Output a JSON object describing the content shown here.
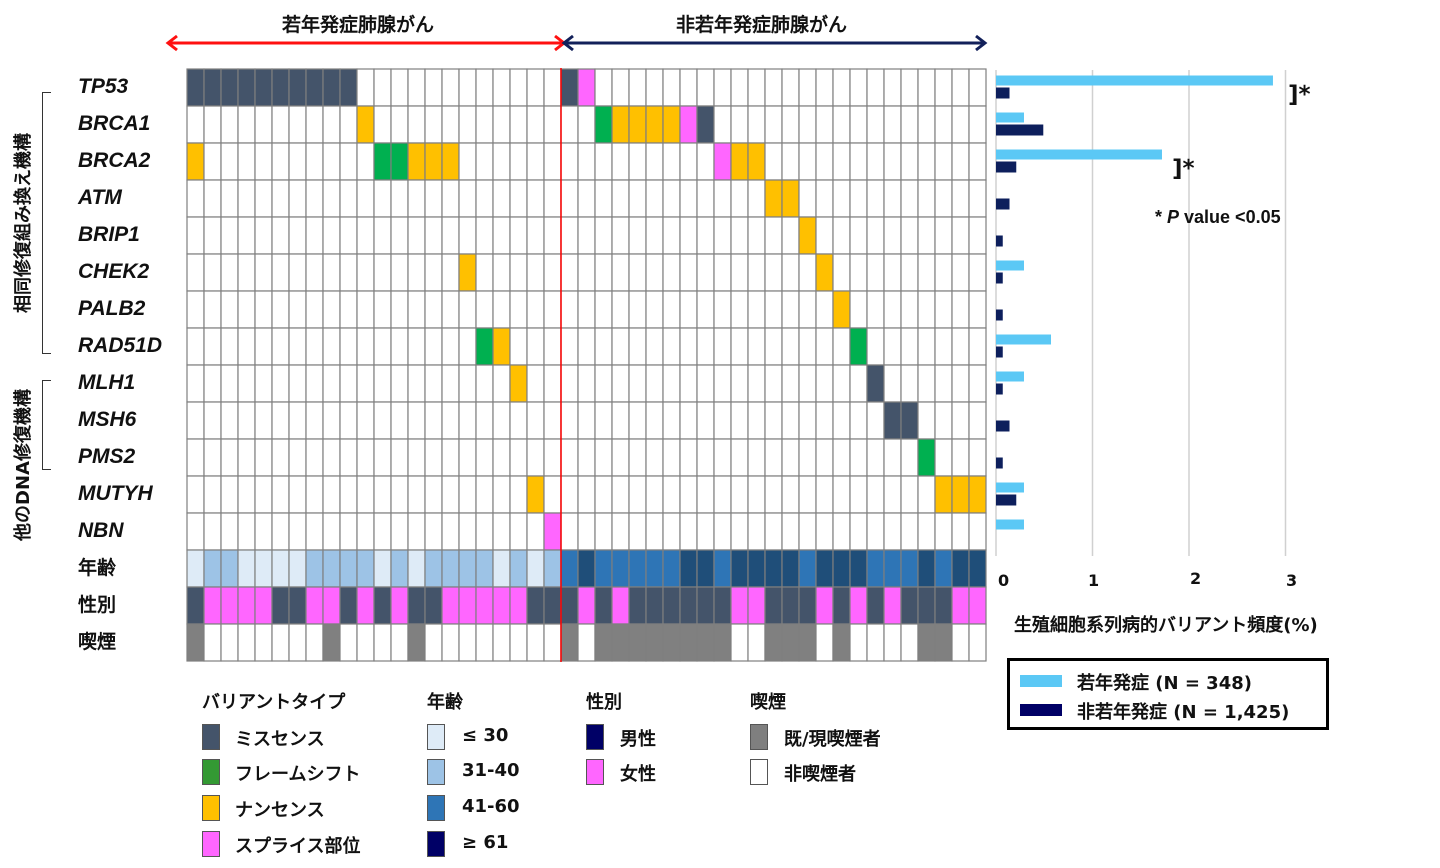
{
  "header": {
    "young_title": "若年発症肺腺がん",
    "old_title": "非若年発症肺腺がん"
  },
  "side_labels": {
    "hr_group": "相同修復組み換え機構",
    "other_group": "他のDNA修復機構"
  },
  "colors": {
    "missense": "#44546A",
    "frameshift": "#00B050",
    "nonsense": "#FFC000",
    "splice": "#FF66FF",
    "age_le30": "#DEEBF7",
    "age_31_40": "#9DC3E6",
    "age_41_60": "#2E75B6",
    "age_ge61": "#1F4E79",
    "male_grid": "#44546A",
    "female": "#FF66FF",
    "smoker": "#808080",
    "nonsmoker": "#FFFFFF",
    "young_bar": "#5BC8F5",
    "old_bar": "#0D1F5C",
    "divider": "#FF0000",
    "young_arrow": "#FF1010",
    "old_arrow": "#12205A"
  },
  "chart_data": [
    {
      "type": "heatmap",
      "title": "oncoplot",
      "groups": [
        {
          "name": "若年発症肺腺がん",
          "n_samples": 22
        },
        {
          "name": "非若年発症肺腺がん",
          "n_samples": 25
        }
      ],
      "variant_codes": {
        "M": "ミスセンス",
        "F": "フレームシフト",
        "N": "ナンセンス",
        "S": "スプライス部位"
      },
      "genes": [
        {
          "gene": "TP53",
          "young": [
            [
              0,
              "M"
            ],
            [
              1,
              "M"
            ],
            [
              2,
              "M"
            ],
            [
              3,
              "M"
            ],
            [
              4,
              "M"
            ],
            [
              5,
              "M"
            ],
            [
              6,
              "M"
            ],
            [
              7,
              "M"
            ],
            [
              8,
              "M"
            ],
            [
              9,
              "M"
            ]
          ],
          "old": [
            [
              0,
              "M"
            ],
            [
              1,
              "S"
            ]
          ]
        },
        {
          "gene": "BRCA1",
          "young": [
            [
              10,
              "N"
            ]
          ],
          "old": [
            [
              2,
              "F"
            ],
            [
              3,
              "N"
            ],
            [
              4,
              "N"
            ],
            [
              5,
              "N"
            ],
            [
              6,
              "N"
            ],
            [
              7,
              "S"
            ],
            [
              8,
              "M"
            ]
          ]
        },
        {
          "gene": "BRCA2",
          "young": [
            [
              0,
              "N"
            ],
            [
              11,
              "F"
            ],
            [
              12,
              "F"
            ],
            [
              13,
              "N"
            ],
            [
              14,
              "N"
            ],
            [
              15,
              "N"
            ]
          ],
          "old": [
            [
              9,
              "S"
            ],
            [
              10,
              "N"
            ],
            [
              11,
              "N"
            ]
          ]
        },
        {
          "gene": "ATM",
          "young": [],
          "old": [
            [
              12,
              "N"
            ],
            [
              13,
              "N"
            ]
          ]
        },
        {
          "gene": "BRIP1",
          "young": [],
          "old": [
            [
              14,
              "N"
            ]
          ]
        },
        {
          "gene": "CHEK2",
          "young": [
            [
              16,
              "N"
            ]
          ],
          "old": [
            [
              15,
              "N"
            ]
          ]
        },
        {
          "gene": "PALB2",
          "young": [],
          "old": [
            [
              16,
              "N"
            ]
          ]
        },
        {
          "gene": "RAD51D",
          "young": [
            [
              17,
              "F"
            ],
            [
              18,
              "N"
            ]
          ],
          "old": [
            [
              17,
              "F"
            ]
          ]
        },
        {
          "gene": "MLH1",
          "young": [
            [
              19,
              "N"
            ]
          ],
          "old": [
            [
              18,
              "M"
            ]
          ]
        },
        {
          "gene": "MSH6",
          "young": [],
          "old": [
            [
              19,
              "M"
            ],
            [
              20,
              "M"
            ]
          ]
        },
        {
          "gene": "PMS2",
          "young": [],
          "old": [
            [
              21,
              "F"
            ]
          ]
        },
        {
          "gene": "MUTYH",
          "young": [
            [
              20,
              "N"
            ]
          ],
          "old": [
            [
              22,
              "N"
            ],
            [
              23,
              "N"
            ],
            [
              24,
              "N"
            ]
          ]
        },
        {
          "gene": "NBN",
          "young": [
            [
              21,
              "S"
            ]
          ],
          "old": []
        }
      ],
      "annotations": [
        {
          "label": "年齢",
          "codes": {
            "1": "≤ 30",
            "2": "31-40",
            "3": "41-60",
            "4": "≥ 61"
          },
          "young": "1221111222212122221212",
          "old": "3433333443444434443334344"
        },
        {
          "label": "性別",
          "codes": {
            "M": "男性",
            "F": "女性"
          },
          "young": "MFFFFMMFFMFMFMMFFFFFMM",
          "old": "MFMFMMMMMMFFMMMFMFMFMMMFF"
        },
        {
          "label": "喫煙",
          "codes": {
            "S": "既/現喫煙者",
            "N": "非喫煙者"
          },
          "young": "SNNNNNNNSNNNNSNNNNNNNN",
          "old": "SNSSSSSSSSNNSSSNSNNNNSSNN"
        }
      ]
    },
    {
      "type": "bar",
      "orientation": "horizontal",
      "categories": [
        "TP53",
        "BRCA1",
        "BRCA2",
        "ATM",
        "BRIP1",
        "CHEK2",
        "PALB2",
        "RAD51D",
        "MLH1",
        "MSH6",
        "PMS2",
        "MUTYH",
        "NBN"
      ],
      "series": [
        {
          "name": "若年発症 (N = 348)",
          "values": [
            2.87,
            0.29,
            1.72,
            0,
            0,
            0.29,
            0,
            0.57,
            0.29,
            0,
            0,
            0.29,
            0.29
          ]
        },
        {
          "name": "非若年発症 (N = 1,425)",
          "values": [
            0.14,
            0.49,
            0.21,
            0.14,
            0.07,
            0.07,
            0.07,
            0.07,
            0.07,
            0.14,
            0.07,
            0.21,
            0
          ]
        }
      ],
      "xlabel": "生殖細胞系列病的バリアント頻度(%)",
      "xlim": [
        0,
        3
      ],
      "xticks": [
        "0",
        "1",
        "2",
        "3"
      ],
      "grid": true,
      "significance": [
        {
          "gene": "TP53",
          "mark": "]*"
        },
        {
          "gene": "BRCA2",
          "mark": "]*"
        }
      ],
      "note": "* P value <0.05",
      "note_parts": {
        "star": "* ",
        "p": "P",
        "rest": " value <0.05"
      },
      "legend_placement": "bottom-right"
    }
  ],
  "legend": {
    "variant": {
      "title": "バリアントタイプ",
      "items": [
        "ミスセンス",
        "フレームシフト",
        "ナンセンス",
        "スプライス部位"
      ]
    },
    "age": {
      "title": "年齢",
      "items": [
        "≤ 30",
        "31-40",
        "41-60",
        "≥ 61"
      ]
    },
    "sex": {
      "title": "性別",
      "items": [
        "男性",
        "女性"
      ]
    },
    "smoking": {
      "title": "喫煙",
      "items": [
        "既/現喫煙者",
        "非喫煙者"
      ]
    },
    "legend_colors": {
      "variant": [
        "#44546A",
        "#339933",
        "#FFC000",
        "#FF66FF"
      ],
      "age": [
        "#DEEBF7",
        "#9DC3E6",
        "#2E75B6",
        "#000066"
      ],
      "sex": [
        "#000066",
        "#FF66FF"
      ],
      "smoking": [
        "#7F7F7F",
        "#FFFFFF"
      ]
    }
  },
  "bar_legend": {
    "young": "若年発症 (N = 348)",
    "old": "非若年発症 (N = 1,425)"
  }
}
